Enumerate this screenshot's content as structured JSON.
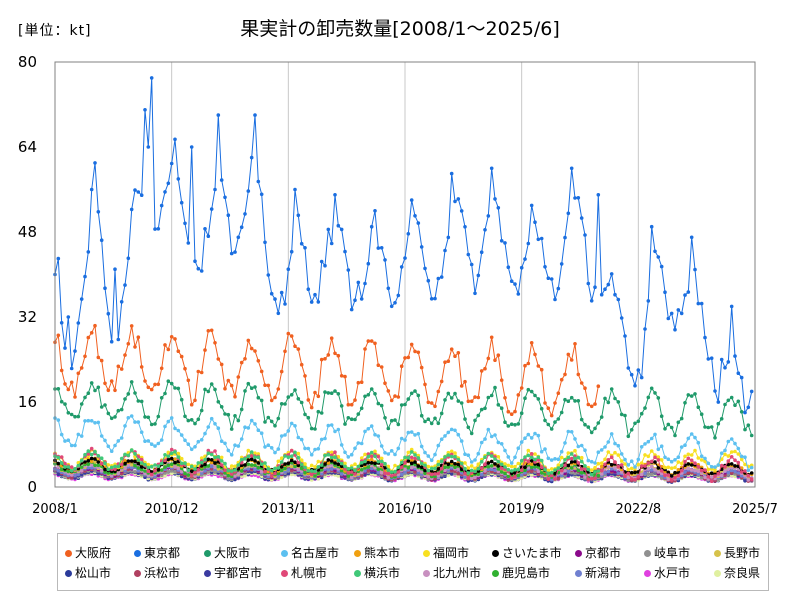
{
  "chart_data": {
    "type": "line",
    "title": "果実計の卸売数量[2008/1～2025/6]",
    "unit_label": "[単位：kt]",
    "xlabel": "",
    "ylabel": "",
    "ylim": [
      0,
      80
    ],
    "yticks": [
      0,
      16,
      32,
      48,
      64,
      80
    ],
    "x_start": "2008/1",
    "x_end": "2025/7",
    "xticks": [
      "2008/1",
      "2010/12",
      "2013/11",
      "2016/10",
      "2019/9",
      "2022/8",
      "2025/7"
    ],
    "grid": "vertical",
    "legend_position": "bottom",
    "series": [
      {
        "name": "大阪府",
        "color": "#f06020",
        "end": "2021/8",
        "base": 24.0,
        "amp": 5.5,
        "trend": -0.3
      },
      {
        "name": "東京都",
        "color": "#1a6ee0",
        "end": "2025/6",
        "base": 42.0,
        "amp": 13.0,
        "trend": -1.0
      },
      {
        "name": "大阪市",
        "color": "#1f9a6a",
        "end": "2025/6",
        "base": 16.0,
        "amp": 3.5,
        "trend": -0.15
      },
      {
        "name": "名古屋市",
        "color": "#5cc0f0",
        "end": "2025/6",
        "base": 10.5,
        "amp": 2.5,
        "trend": -0.25
      },
      {
        "name": "熊本市",
        "color": "#f0a010",
        "end": "2025/6",
        "base": 4.2,
        "amp": 1.0,
        "trend": -0.05
      },
      {
        "name": "福岡市",
        "color": "#f8e020",
        "end": "2025/6",
        "base": 5.0,
        "amp": 1.5,
        "trend": 0.0
      },
      {
        "name": "さいたま市",
        "color": "#000000",
        "end": "2025/6",
        "base": 4.2,
        "amp": 1.0,
        "trend": -0.05
      },
      {
        "name": "京都市",
        "color": "#8b0a8b",
        "end": "2025/6",
        "base": 3.0,
        "amp": 0.8,
        "trend": -0.04
      },
      {
        "name": "岐阜市",
        "color": "#909090",
        "end": "2025/6",
        "base": 2.6,
        "amp": 0.7,
        "trend": -0.04
      },
      {
        "name": "長野市",
        "color": "#d6c24a",
        "end": "2025/6",
        "base": 3.4,
        "amp": 1.0,
        "trend": -0.03
      },
      {
        "name": "松山市",
        "color": "#2a3a9a",
        "end": "2025/6",
        "base": 2.2,
        "amp": 0.6,
        "trend": -0.03
      },
      {
        "name": "浜松市",
        "color": "#b04060",
        "end": "2025/6",
        "base": 2.8,
        "amp": 0.8,
        "trend": -0.04
      },
      {
        "name": "宇都宮市",
        "color": "#3a3aa0",
        "end": "2025/6",
        "base": 2.4,
        "amp": 0.6,
        "trend": -0.03
      },
      {
        "name": "札幌市",
        "color": "#e04878",
        "end": "2025/6",
        "base": 5.0,
        "amp": 1.8,
        "trend": -0.1
      },
      {
        "name": "横浜市",
        "color": "#40c878",
        "end": "2021/8",
        "base": 5.0,
        "amp": 1.5,
        "trend": -0.05
      },
      {
        "name": "北九州市",
        "color": "#c890c0",
        "end": "2025/6",
        "base": 3.4,
        "amp": 1.0,
        "trend": -0.05
      },
      {
        "name": "鹿児島市",
        "color": "#30b030",
        "end": "2021/8",
        "base": 3.6,
        "amp": 1.0,
        "trend": -0.05
      },
      {
        "name": "新潟市",
        "color": "#7080d0",
        "end": "2025/6",
        "base": 3.0,
        "amp": 0.8,
        "trend": -0.04
      },
      {
        "name": "水戸市",
        "color": "#e040e0",
        "end": "2025/6",
        "base": 2.0,
        "amp": 0.5,
        "trend": -0.02
      },
      {
        "name": "奈良県",
        "color": "#e0f0a0",
        "end": "2025/6",
        "base": 2.2,
        "amp": 0.5,
        "trend": -0.03
      }
    ],
    "peaks": {
      "name": "東京都",
      "points": [
        {
          "x": "2008/1",
          "y": 40
        },
        {
          "x": "2008/2",
          "y": 43
        },
        {
          "x": "2008/5",
          "y": 32
        },
        {
          "x": "2008/12",
          "y": 56
        },
        {
          "x": "2009/1",
          "y": 61
        },
        {
          "x": "2009/7",
          "y": 41
        },
        {
          "x": "2010/4",
          "y": 71
        },
        {
          "x": "2010/5",
          "y": 64
        },
        {
          "x": "2010/6",
          "y": 77
        },
        {
          "x": "2011/6",
          "y": 64
        },
        {
          "x": "2012/1",
          "y": 56
        },
        {
          "x": "2012/2",
          "y": 70
        },
        {
          "x": "2012/12",
          "y": 62
        },
        {
          "x": "2013/1",
          "y": 70
        },
        {
          "x": "2013/11",
          "y": 41
        },
        {
          "x": "2014/1",
          "y": 56
        },
        {
          "x": "2015/1",
          "y": 55
        },
        {
          "x": "2016/1",
          "y": 52
        },
        {
          "x": "2016/12",
          "y": 54
        },
        {
          "x": "2017/12",
          "y": 59
        },
        {
          "x": "2018/12",
          "y": 60
        },
        {
          "x": "2019/12",
          "y": 53
        },
        {
          "x": "2020/12",
          "y": 60
        },
        {
          "x": "2021/8",
          "y": 55
        },
        {
          "x": "2022/8",
          "y": 22
        },
        {
          "x": "2022/12",
          "y": 49
        },
        {
          "x": "2023/12",
          "y": 47
        },
        {
          "x": "2024/9",
          "y": 24
        },
        {
          "x": "2024/12",
          "y": 34
        },
        {
          "x": "2025/5",
          "y": 15
        },
        {
          "x": "2025/6",
          "y": 18
        }
      ]
    }
  }
}
